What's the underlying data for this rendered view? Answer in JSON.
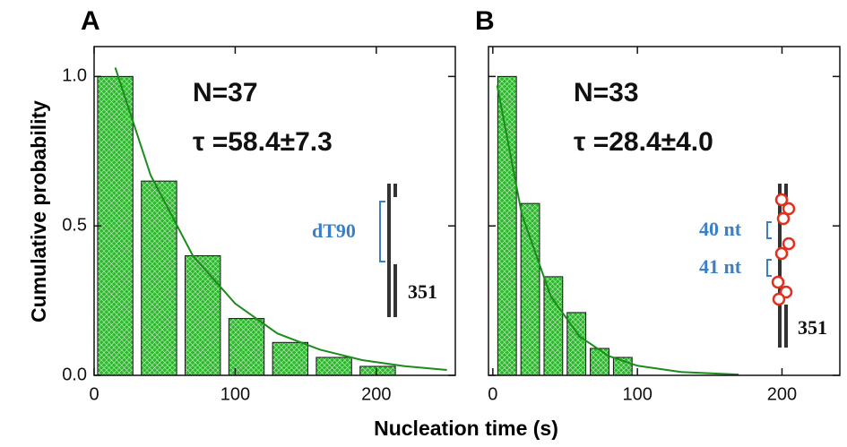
{
  "chart_data": [
    {
      "type": "bar",
      "panel": "A",
      "ylabel": "Cumulative probability",
      "xlabel": "Nucleation time (s)",
      "xlim": [
        0,
        256
      ],
      "ylim": [
        0,
        1.1
      ],
      "xticks": [
        0,
        100,
        200
      ],
      "yticks": [
        {
          "value": 0,
          "label": "0.0"
        },
        {
          "value": 0.5,
          "label": "0.5"
        },
        {
          "value": 1,
          "label": "1.0"
        }
      ],
      "bars": {
        "color": "#2db82d",
        "x": [
          15,
          46,
          77,
          108,
          139,
          170,
          201
        ],
        "values": [
          1.0,
          0.65,
          0.4,
          0.19,
          0.11,
          0.06,
          0.03
        ]
      },
      "fit": {
        "color": "#1a8c1a",
        "x": [
          15,
          40,
          70,
          100,
          130,
          160,
          190,
          220,
          250
        ],
        "values": [
          1.03,
          0.67,
          0.4,
          0.24,
          0.14,
          0.086,
          0.051,
          0.031,
          0.018
        ]
      },
      "annotations": [
        "N=37",
        "τ =58.4±7.3",
        "dT90",
        "351"
      ]
    },
    {
      "type": "bar",
      "panel": "B",
      "xlim": [
        -3,
        240
      ],
      "ylim": [
        0,
        1.1
      ],
      "xticks": [
        0,
        100,
        200
      ],
      "yticks": [
        0,
        0.5,
        1
      ],
      "bars": {
        "color": "#2db82d",
        "x": [
          7.5,
          23.5,
          39.5,
          55.5,
          71.5,
          87.5
        ],
        "values": [
          1.0,
          0.575,
          0.33,
          0.21,
          0.09,
          0.06
        ]
      },
      "fit": {
        "color": "#1a8c1a",
        "x": [
          3,
          20,
          40,
          60,
          80,
          100,
          130,
          170
        ],
        "values": [
          0.97,
          0.54,
          0.265,
          0.13,
          0.065,
          0.032,
          0.011,
          0.0027
        ]
      },
      "annotations": [
        "N=33",
        "τ =28.4±4.0",
        "40 nt",
        "41 nt",
        "351"
      ]
    }
  ]
}
